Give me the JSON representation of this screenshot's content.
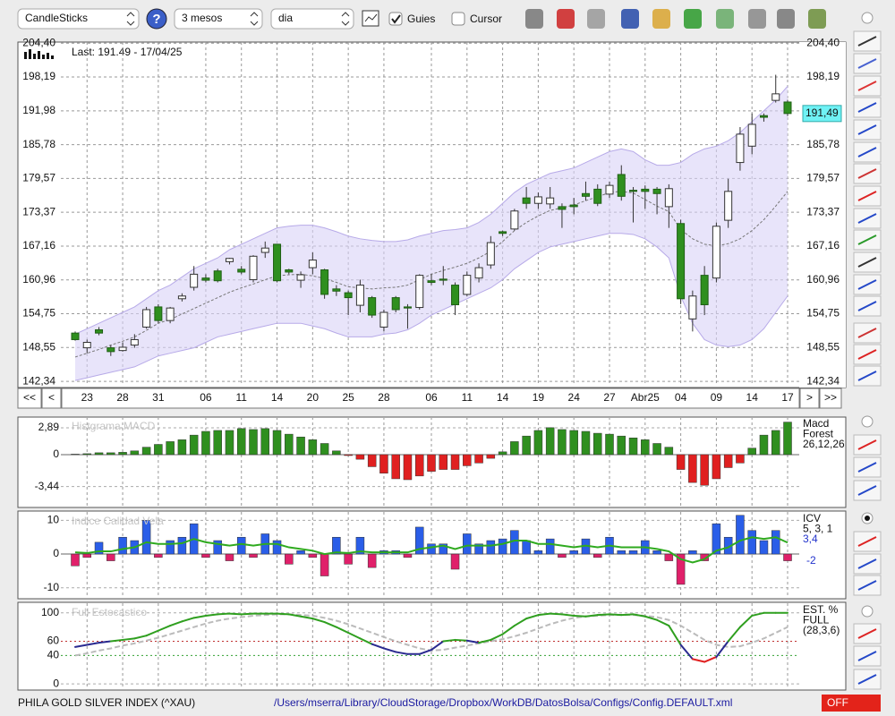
{
  "toolbar": {
    "chart_style": "CandleSticks",
    "period": "3 mesos",
    "interval": "dia",
    "guides": "Guies",
    "guides_checked": true,
    "cursor": "Cursor",
    "cursor_checked": false
  },
  "chart_data": [
    {
      "type": "candlestick",
      "last_label": "Last: 191.49 - 17/04/25",
      "last_value_label": "191,49",
      "nav": [
        "<<",
        "<",
        ">",
        ">>"
      ],
      "categories": [
        null,
        "23",
        null,
        null,
        "28",
        null,
        null,
        "31",
        null,
        null,
        null,
        "06",
        null,
        null,
        "11",
        null,
        null,
        "14",
        null,
        null,
        "20",
        null,
        null,
        "25",
        null,
        null,
        "28",
        null,
        null,
        null,
        "06",
        null,
        null,
        "11",
        null,
        null,
        "14",
        null,
        null,
        "19",
        null,
        null,
        "24",
        null,
        null,
        "27",
        null,
        null,
        "Abr25",
        null,
        null,
        "04",
        null,
        null,
        "09",
        null,
        null,
        "14",
        null,
        null,
        "17"
      ],
      "open": [
        151.2,
        148.5,
        151.8,
        148.5,
        148,
        149,
        152.3,
        156,
        153.5,
        157.5,
        159.6,
        161.3,
        162.6,
        164.3,
        162.9,
        161,
        166,
        167.5,
        162.8,
        160.9,
        163.2,
        162.8,
        159.3,
        158.6,
        156.3,
        157.7,
        152.3,
        157.7,
        156,
        155.9,
        160.8,
        161.1,
        160,
        158.3,
        161.3,
        163.7,
        169.8,
        170.3,
        176,
        175,
        174.9,
        174.4,
        174.7,
        176.8,
        177.6,
        176.7,
        180.3,
        177.4,
        177.6,
        177.6,
        174.4,
        171.3,
        153.8,
        161.8,
        161.3,
        171.9,
        182.5,
        185.5,
        191.1,
        193.9,
        193.6
      ],
      "high": [
        151.5,
        150,
        152.3,
        149,
        149.5,
        151,
        156,
        156.5,
        156,
        158.5,
        163.5,
        162,
        163,
        165,
        163.5,
        165.5,
        168,
        167.5,
        163,
        162.5,
        166,
        163,
        160,
        159,
        161,
        158,
        155.5,
        158,
        156.5,
        162,
        162,
        163.5,
        160.5,
        162.5,
        164,
        169,
        170,
        174,
        178,
        177,
        178,
        175,
        176,
        179,
        178.5,
        179,
        182,
        178,
        178.3,
        178,
        178.5,
        172,
        159,
        163.5,
        171.5,
        179.5,
        189,
        191.5,
        191.5,
        198.6,
        194
      ],
      "low": [
        149.8,
        147.5,
        150.8,
        147,
        147.8,
        148.5,
        152,
        153,
        153,
        157,
        159,
        160.5,
        160.5,
        163.8,
        162,
        160.5,
        165,
        160.5,
        162,
        159.5,
        162,
        157.5,
        158,
        154.5,
        155,
        154,
        151.5,
        155,
        152,
        155.5,
        160,
        160,
        154.5,
        158,
        160.5,
        163,
        169,
        170,
        174,
        174,
        174,
        170.5,
        173,
        175.5,
        174.5,
        176,
        175.5,
        171.5,
        174,
        173,
        170.5,
        156.5,
        151.5,
        154.5,
        160.5,
        170.5,
        181,
        184,
        190,
        193.5,
        191
      ],
      "close": [
        150,
        149.5,
        151.2,
        147.8,
        148.6,
        150,
        155.5,
        153.5,
        155.8,
        158,
        162,
        160.9,
        160.8,
        164.9,
        162.4,
        165.3,
        166.8,
        160.8,
        162.4,
        161.9,
        164.6,
        158.3,
        158.9,
        157.7,
        160,
        154.5,
        155,
        155.5,
        155.8,
        161.8,
        160.5,
        160.9,
        156.4,
        161.8,
        163.2,
        167.8,
        169.5,
        173.6,
        175,
        176.2,
        176,
        173.9,
        174.4,
        176.3,
        175,
        178.3,
        176.3,
        177.2,
        177.2,
        176.8,
        177.7,
        157.5,
        158,
        156.4,
        170.8,
        177.2,
        187.7,
        189.5,
        190.8,
        195.1,
        191.49
      ],
      "bands": {
        "upper": [
          151,
          152,
          153,
          154,
          155,
          156,
          157.5,
          159,
          160,
          161.5,
          163,
          164,
          165,
          166.5,
          167.5,
          168.5,
          169.5,
          170.5,
          170.8,
          171,
          171,
          170.5,
          169.8,
          169,
          168.5,
          168.2,
          168,
          168,
          168.3,
          169,
          169.5,
          170,
          170.2,
          170.5,
          171.5,
          173,
          175,
          177,
          178.5,
          179.5,
          180.5,
          181,
          181.5,
          182.5,
          183.5,
          184.5,
          185,
          184.5,
          183,
          182,
          182,
          182.5,
          184,
          185,
          185.5,
          186.5,
          188,
          190,
          192,
          194,
          196.5
        ],
        "middle": [
          146.8,
          147.5,
          148.2,
          149,
          149.7,
          150.5,
          151.7,
          153,
          153.7,
          154.7,
          155.7,
          156.7,
          157.7,
          158.7,
          159.5,
          160.2,
          161,
          161.7,
          161.9,
          162,
          161.7,
          161.2,
          160.5,
          159.7,
          159.5,
          159.3,
          159.5,
          159.6,
          160,
          161,
          162,
          162.7,
          163.3,
          164,
          165,
          166.2,
          168,
          170,
          171.5,
          172.7,
          173.7,
          174.2,
          174.7,
          175.5,
          176.2,
          177,
          177.2,
          176.9,
          175.7,
          174.5,
          173.5,
          170.2,
          168.5,
          167.5,
          167.2,
          167.6,
          168.5,
          170,
          172,
          174.5,
          177.2
        ],
        "lower": [
          142.5,
          143,
          143.5,
          144,
          144.5,
          145,
          146,
          147,
          147.5,
          148,
          148.5,
          149.5,
          150.5,
          151,
          151.5,
          152,
          152.5,
          153,
          153,
          153,
          152.5,
          152,
          151.2,
          150.5,
          150.5,
          150.5,
          151,
          151.2,
          151.8,
          153,
          154.5,
          155.5,
          156.5,
          157.5,
          158.5,
          159.5,
          161,
          163,
          164.5,
          166,
          167,
          167.5,
          168,
          168.5,
          169,
          169.5,
          169.5,
          169.3,
          168.5,
          167,
          165,
          158,
          153,
          150,
          149,
          148.7,
          149,
          150,
          152,
          155,
          158
        ]
      },
      "up_color": "#ffffff",
      "down_color": "#2f8f1f",
      "band_color": "#d9d2f7",
      "band_line": "#b7aae8",
      "middle_color": "#777777",
      "ylim": [
        141.7,
        204.6
      ],
      "yticks": [
        {
          "value": 142.34,
          "label": "142,34"
        },
        {
          "value": 148.55,
          "label": "148,55"
        },
        {
          "value": 154.75,
          "label": "154,75"
        },
        {
          "value": 160.96,
          "label": "160,96"
        },
        {
          "value": 167.16,
          "label": "167,16"
        },
        {
          "value": 173.37,
          "label": "173,37"
        },
        {
          "value": 179.57,
          "label": "179,57"
        },
        {
          "value": 185.78,
          "label": "185,78"
        },
        {
          "value": 191.98,
          "label": "191,98"
        },
        {
          "value": 198.19,
          "label": "198,19"
        },
        {
          "value": 204.4,
          "label": "204,40"
        }
      ],
      "grid": true
    },
    {
      "type": "bar",
      "title": "Histgrama MACD",
      "legend": [
        "Macd",
        "Forest",
        "26,12,26"
      ],
      "values": [
        0.05,
        0.1,
        0.2,
        0.2,
        0.25,
        0.4,
        0.8,
        1.1,
        1.4,
        1.6,
        2.1,
        2.5,
        2.6,
        2.6,
        2.8,
        2.7,
        2.8,
        2.6,
        2.2,
        1.9,
        1.6,
        1.2,
        0.4,
        -0.1,
        -0.5,
        -1.3,
        -2.0,
        -2.6,
        -2.7,
        -2.3,
        -1.8,
        -1.6,
        -1.6,
        -1.2,
        -0.9,
        -0.4,
        0.3,
        1.4,
        2.0,
        2.6,
        2.9,
        2.7,
        2.6,
        2.5,
        2.3,
        2.2,
        2.0,
        1.8,
        1.6,
        1.2,
        0.8,
        -1.6,
        -3.0,
        -3.3,
        -2.6,
        -1.4,
        -0.9,
        0.7,
        2.1,
        2.6,
        3.5
      ],
      "positive_color": "#2f8f1f",
      "negative_color": "#e02020",
      "ylim": [
        -5.59,
        4.04
      ],
      "yticks": [
        {
          "value": 2.89,
          "label": "2,89"
        },
        0,
        {
          "value": -3.44,
          "label": "-3,44"
        }
      ],
      "grid": true
    },
    {
      "type": "bar",
      "title": "Indice Calidad Vela",
      "legend": [
        "ICV",
        "5, 3, 1",
        "3,4",
        "-2"
      ],
      "values": [
        -3.5,
        -1,
        3.5,
        -2,
        5,
        4,
        10,
        -1,
        4,
        5,
        9,
        -1,
        4,
        -2,
        5,
        -1,
        6,
        4,
        -3,
        1,
        -1,
        -6.5,
        5,
        -3,
        5,
        -4,
        1,
        1,
        -1,
        8,
        3,
        3,
        -4.5,
        6,
        3,
        4,
        4.5,
        7,
        4,
        1,
        4.5,
        -1,
        1,
        4.5,
        -1,
        5,
        1,
        1,
        4,
        1,
        -2,
        -9,
        1,
        -2,
        9,
        5,
        11.5,
        7,
        4,
        7,
        -2
      ],
      "line": [
        0.5,
        0.3,
        0.8,
        0.8,
        1.5,
        2,
        3.5,
        3,
        3,
        3.2,
        4.5,
        3.5,
        3,
        2.5,
        3,
        2.5,
        3,
        3,
        2,
        1.5,
        1,
        0,
        0.5,
        0.3,
        0.8,
        0.5,
        0.5,
        0.5,
        0.5,
        1.5,
        2,
        2.5,
        1.5,
        2.5,
        2.5,
        2.5,
        3,
        4,
        4,
        3,
        3,
        2.5,
        2,
        2.5,
        2,
        2.5,
        2,
        2,
        2,
        1.5,
        0.8,
        -1.5,
        -2.5,
        -1.5,
        1,
        2,
        4,
        5,
        4.5,
        5,
        3.4
      ],
      "positive_color": "#2a5ee8",
      "negative_color": "#e0206a",
      "line_color": "#2faa1f",
      "ylim": [
        -13,
        12.5
      ],
      "yticks": [
        10,
        0,
        -10
      ],
      "grid": true
    },
    {
      "type": "line",
      "title": "Full Estocastico",
      "legend": [
        "EST. %",
        "FULL",
        "(28,3,6)"
      ],
      "series": [
        {
          "color": "#2f9f1f",
          "values": [
            52,
            55,
            58,
            60,
            62,
            64,
            68,
            75,
            82,
            88,
            93,
            96,
            98,
            99,
            98,
            99,
            99,
            99,
            98,
            95,
            92,
            87,
            80,
            72,
            64,
            56,
            50,
            45,
            42,
            42,
            48,
            60,
            62,
            61,
            58,
            62,
            70,
            82,
            92,
            97,
            99,
            98,
            96,
            95,
            97,
            98,
            97,
            98,
            95,
            90,
            82,
            55,
            35,
            31,
            38,
            60,
            80,
            96,
            100,
            100,
            100
          ]
        },
        {
          "color": "#bbbbbb",
          "dashed": true,
          "values": [
            40,
            43,
            47,
            50,
            54,
            57,
            61,
            65,
            70,
            75,
            80,
            85,
            89,
            92,
            94,
            96,
            97,
            98,
            98,
            97,
            96,
            93,
            89,
            84,
            78,
            72,
            66,
            60,
            55,
            50,
            47,
            48,
            51,
            54,
            57,
            60,
            63,
            67,
            72,
            78,
            84,
            89,
            93,
            95,
            96,
            97,
            97,
            97,
            96,
            94,
            90,
            82,
            72,
            62,
            55,
            52,
            53,
            58,
            64,
            72,
            80
          ]
        }
      ],
      "levels": [
        {
          "value": 60,
          "color": "#c03030"
        },
        {
          "value": 40,
          "color": "#30a030"
        }
      ],
      "low_color": "#e02020",
      "mid_color": "#2a2a90",
      "ylim": [
        -7.4,
        113.6
      ],
      "yticks": [
        100,
        60,
        40,
        0
      ],
      "grid": true
    }
  ],
  "footer": {
    "index": "PHILA GOLD  SILVER INDEX (^XAU)",
    "path": "/Users/mserra/Library/CloudStorage/Dropbox/WorkDB/DatosBolsa/Configs/Config.DEFAULT.xml",
    "status": "OFF"
  }
}
